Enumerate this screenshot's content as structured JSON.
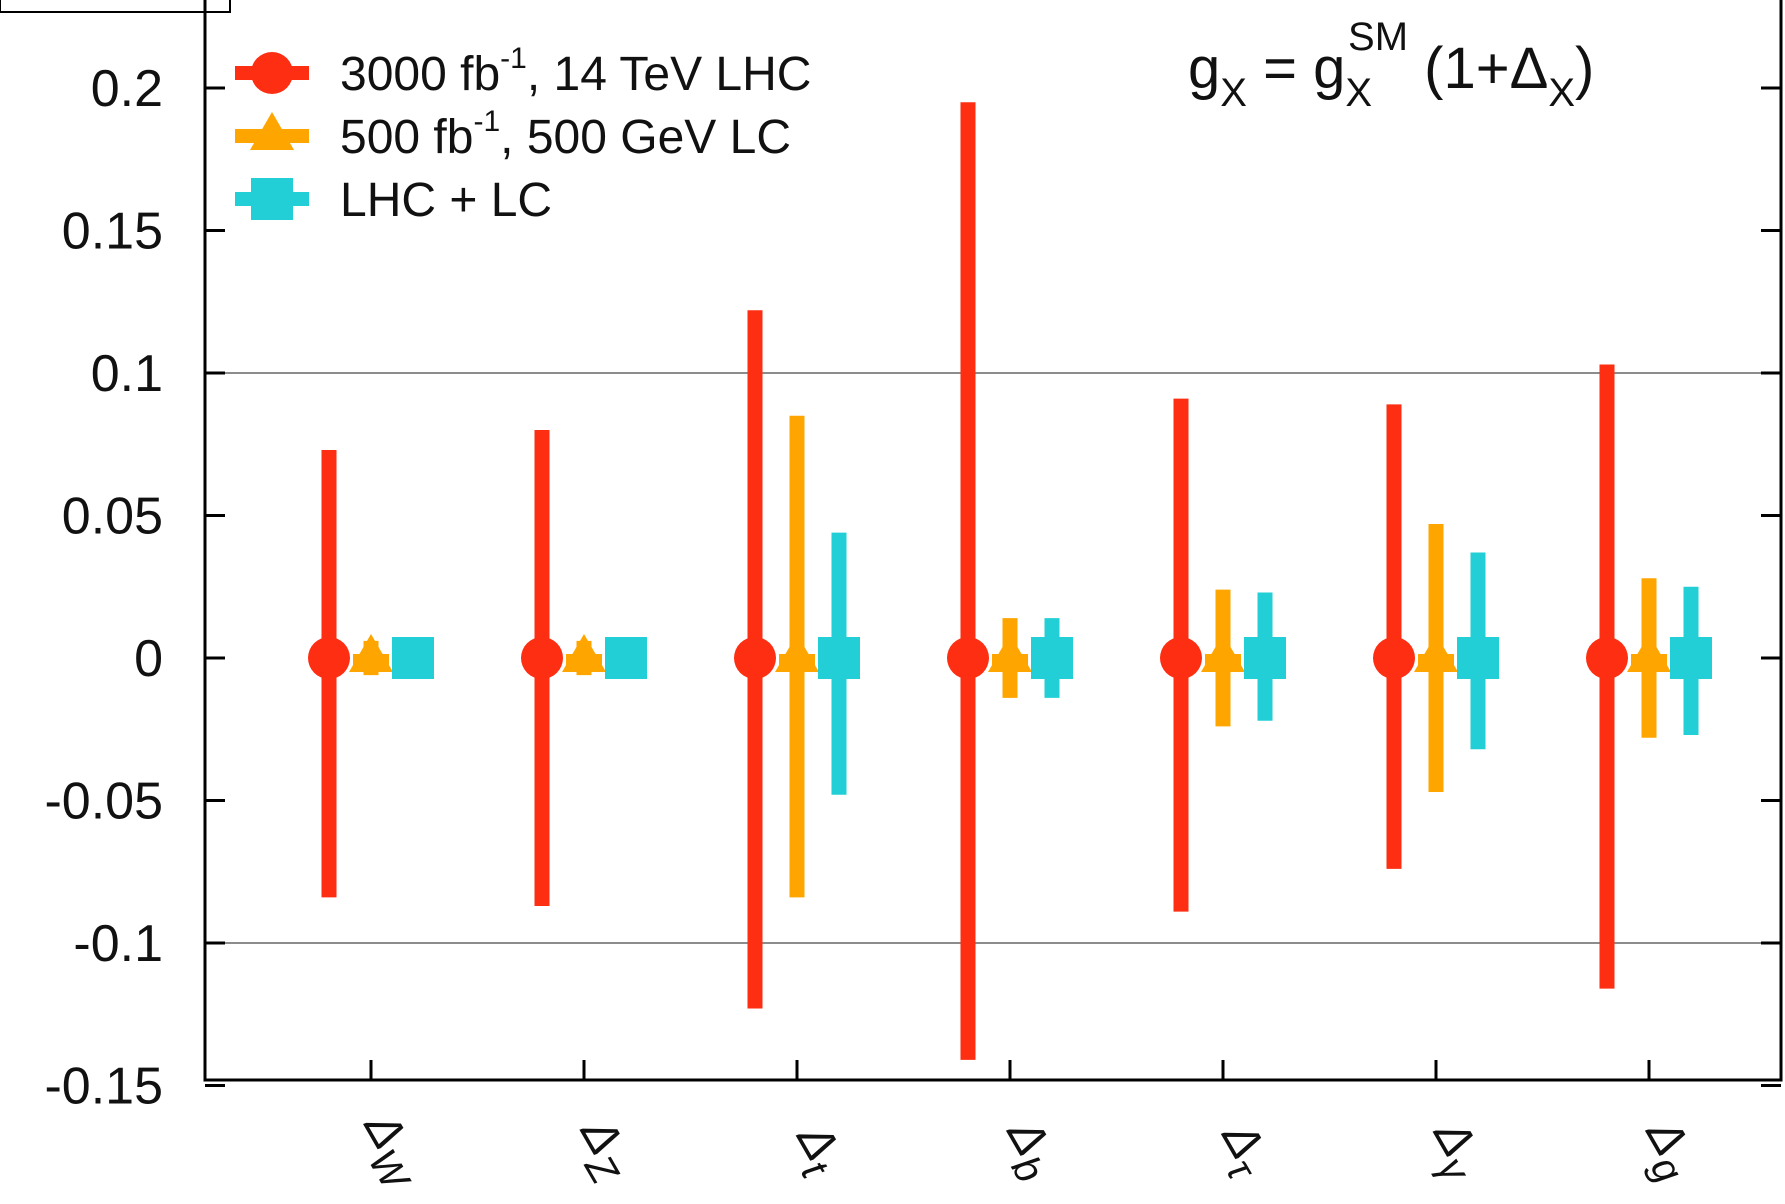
{
  "chart_data": {
    "type": "scatter",
    "subtype": "error-bar",
    "title": "",
    "xlabel": "",
    "ylabel": "",
    "ylim": [
      -0.15,
      0.23
    ],
    "yticks": [
      -0.15,
      -0.1,
      -0.05,
      0,
      0.05,
      0.1,
      0.15,
      0.2
    ],
    "ytick_labels": [
      "-0.15",
      "-0.1",
      "-0.05",
      "0",
      "0.05",
      "0.1",
      "0.15",
      "0.2"
    ],
    "grid": "horizontal lines at y = 0.1 and y = -0.1",
    "legend_position": "top-left",
    "categories": [
      {
        "symbol": "Δ",
        "sub": "W"
      },
      {
        "symbol": "Δ",
        "sub": "Z"
      },
      {
        "symbol": "Δ",
        "sub": "t"
      },
      {
        "symbol": "Δ",
        "sub": "b"
      },
      {
        "symbol": "Δ",
        "sub": "τ"
      },
      {
        "symbol": "Δ",
        "sub": "γ"
      },
      {
        "symbol": "Δ",
        "sub": "g"
      }
    ],
    "series": [
      {
        "name_main": "3000 fb",
        "name_sup": "-1",
        "name_rest": ", 14 TeV LHC",
        "marker": "circle",
        "color": "#fe2e12",
        "values": [
          0,
          0,
          0,
          0,
          0,
          0,
          0
        ],
        "err_up": [
          0.073,
          0.08,
          0.122,
          0.195,
          0.091,
          0.089,
          0.103
        ],
        "err_down": [
          -0.084,
          -0.087,
          -0.123,
          -0.141,
          -0.089,
          -0.074,
          -0.116
        ]
      },
      {
        "name_main": "500 fb",
        "name_sup": "-1",
        "name_rest": ", 500 GeV LC",
        "marker": "triangle",
        "color": "#ffa500",
        "values": [
          0,
          0,
          0,
          0,
          0,
          0,
          0
        ],
        "err_up": [
          0.006,
          0.006,
          0.085,
          0.014,
          0.024,
          0.047,
          0.028
        ],
        "err_down": [
          -0.006,
          -0.006,
          -0.084,
          -0.014,
          -0.024,
          -0.047,
          -0.028
        ]
      },
      {
        "name_main": "LHC + LC",
        "name_sup": "",
        "name_rest": "",
        "marker": "square",
        "color": "#22cfd6",
        "values": [
          0,
          0,
          0,
          0,
          0,
          0,
          0
        ],
        "err_up": [
          0.006,
          0.006,
          0.044,
          0.014,
          0.023,
          0.037,
          0.025
        ],
        "err_down": [
          -0.006,
          -0.006,
          -0.048,
          -0.014,
          -0.022,
          -0.032,
          -0.027
        ]
      }
    ],
    "annotation": {
      "parts": [
        {
          "text": "g"
        },
        {
          "text": "X",
          "sub": true
        },
        {
          "text": " = "
        },
        {
          "text": "g"
        },
        {
          "text": "X",
          "sub": true
        },
        {
          "text": "SM",
          "sup": true
        },
        {
          "text": " (1+"
        },
        {
          "text": "Δ"
        },
        {
          "text": "X",
          "sub": true
        },
        {
          "text": ")"
        }
      ]
    },
    "colors": {
      "axis": "#000000",
      "grid": "#8c8c8c",
      "text": "#111111"
    }
  }
}
